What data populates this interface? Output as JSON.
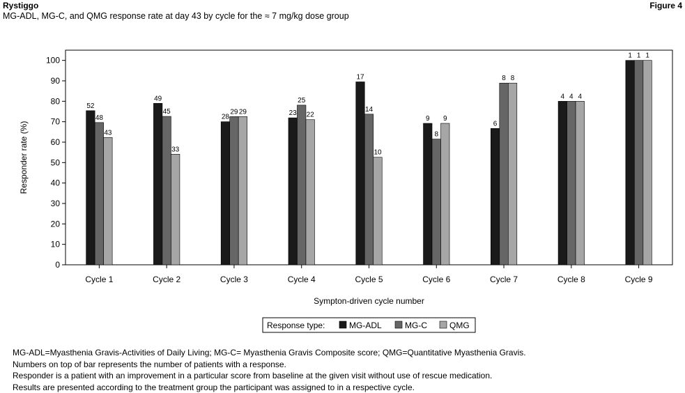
{
  "header": {
    "title": "Rystiggo",
    "figure_label": "Figure 4",
    "subtitle": "MG-ADL, MG-C, and QMG response rate at day 43 by cycle for the ≈ 7 mg/kg dose group"
  },
  "chart_data": {
    "type": "bar",
    "categories": [
      "Cycle 1",
      "Cycle 2",
      "Cycle 3",
      "Cycle 4",
      "Cycle 5",
      "Cycle 6",
      "Cycle 7",
      "Cycle 8",
      "Cycle 9"
    ],
    "series": [
      {
        "name": "MG-ADL",
        "color": "#1a1a1a",
        "values": [
          75.4,
          79.0,
          70.0,
          71.9,
          89.5,
          69.2,
          66.7,
          80.0,
          100
        ],
        "labels": [
          "52",
          "49",
          "28",
          "23",
          "17",
          "9",
          "6",
          "4",
          "1"
        ]
      },
      {
        "name": "MG-C",
        "color": "#666666",
        "values": [
          69.6,
          72.6,
          72.5,
          78.1,
          73.7,
          61.5,
          88.9,
          80.0,
          100
        ],
        "labels": [
          "48",
          "45",
          "29",
          "25",
          "14",
          "8",
          "8",
          "4",
          "1"
        ]
      },
      {
        "name": "QMG",
        "color": "#a6a6a6",
        "values": [
          62.3,
          54.1,
          72.5,
          71.0,
          52.6,
          69.2,
          88.9,
          80.0,
          100
        ],
        "labels": [
          "43",
          "33",
          "29",
          "22",
          "10",
          "9",
          "8",
          "4",
          "1"
        ]
      }
    ],
    "xlabel": "Sympton-driven cycle number",
    "ylabel": "Responder rate (%)",
    "ylim": [
      0,
      105
    ],
    "yticks": [
      0,
      10,
      20,
      30,
      40,
      50,
      60,
      70,
      80,
      90,
      100
    ],
    "grid": false,
    "legend": {
      "title": "Response type:",
      "position": "bottom-center"
    }
  },
  "footnotes": [
    "MG-ADL=Myasthenia Gravis-Activities of Daily Living; MG-C= Myasthenia Gravis Composite score; QMG=Quantitative Myasthenia Gravis.",
    "Numbers on top of bar represents the number of patients with a response.",
    "Responder is a patient with an improvement in a particular score from baseline at the given visit without use of rescue medication.",
    "Results are presented according to the treatment group the participant was assigned to in a respective cycle."
  ]
}
